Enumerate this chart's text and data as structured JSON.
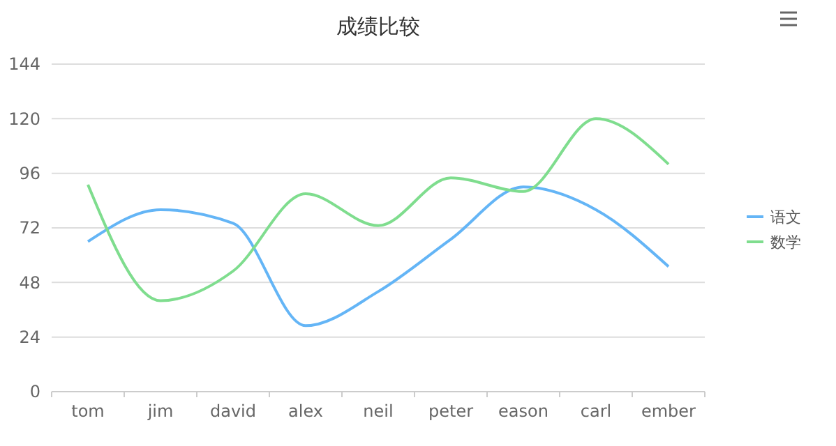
{
  "chart_data": {
    "type": "line",
    "title": "成绩比较",
    "categories": [
      "tom",
      "jim",
      "david",
      "alex",
      "neil",
      "peter",
      "eason",
      "carl",
      "ember"
    ],
    "series": [
      {
        "name": "语文",
        "color": "#64b5f6",
        "values": [
          66,
          80,
          74,
          29,
          44,
          67,
          90,
          80,
          55
        ]
      },
      {
        "name": "数学",
        "color": "#7fdd8e",
        "values": [
          91,
          40,
          53,
          87,
          73,
          94,
          88,
          120,
          100
        ]
      }
    ],
    "ylim": [
      0,
      144
    ],
    "yticks": [
      0,
      24,
      48,
      72,
      96,
      120,
      144
    ],
    "grid": "y",
    "legend": "right",
    "marker": "none",
    "line_style": "solid"
  }
}
